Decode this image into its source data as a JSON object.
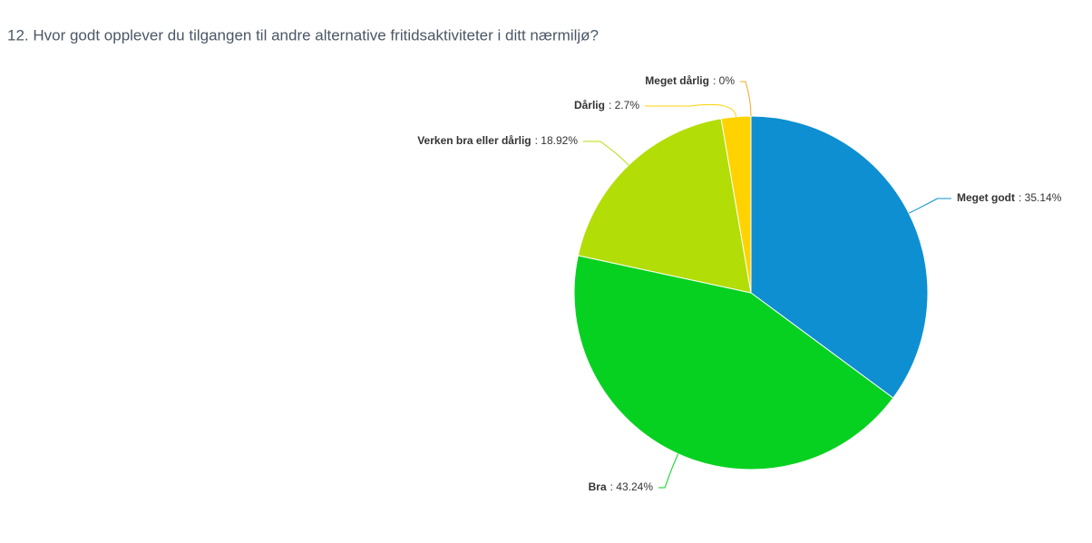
{
  "chart_data": {
    "type": "pie",
    "title": "12. Hvor godt opplever du tilgangen til andre alternative fritidsaktiviteter i ditt nærmiljø?",
    "categories": [
      "Meget godt",
      "Bra",
      "Verken bra eller dårlig",
      "Dårlig",
      "Meget dårlig"
    ],
    "values": [
      35.14,
      43.24,
      18.92,
      2.7,
      0
    ],
    "value_labels": [
      ": 35.14%",
      ": 43.24%",
      ": 18.92%",
      ": 2.7%",
      ": 0%"
    ],
    "colors": [
      "#0e8fd1",
      "#06d120",
      "#b2dd06",
      "#ffd200",
      "#f5a623"
    ]
  }
}
